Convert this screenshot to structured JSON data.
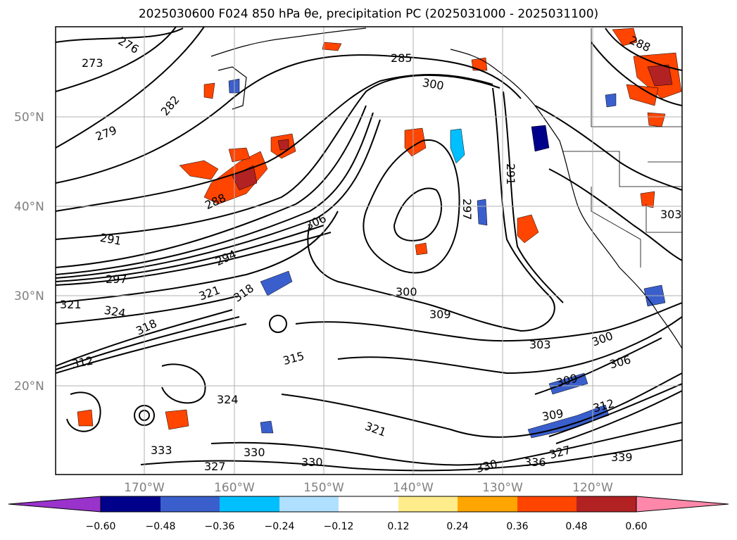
{
  "title": "2025030600 F024 850 hPa θe, precipitation PC (2025031000 - 2025031100)",
  "map": {
    "lat_labels": [
      "50°N",
      "40°N",
      "30°N",
      "20°N"
    ],
    "lon_labels": [
      "170°W",
      "160°W",
      "150°W",
      "140°W",
      "130°W",
      "120°W"
    ],
    "contour_labels": [
      "273",
      "276",
      "279",
      "282",
      "285",
      "288",
      "288",
      "291",
      "291",
      "294",
      "297",
      "297",
      "300",
      "300",
      "300",
      "303",
      "303",
      "306",
      "306",
      "309",
      "309",
      "309",
      "312",
      "312",
      "315",
      "318",
      "318",
      "321",
      "321",
      "321",
      "324",
      "324",
      "327",
      "327",
      "330",
      "330",
      "330",
      "333",
      "336",
      "339"
    ]
  },
  "colorbar": {
    "ticks": [
      "−0.60",
      "−0.48",
      "−0.36",
      "−0.24",
      "−0.12",
      "0.12",
      "0.24",
      "0.36",
      "0.48",
      "0.60"
    ],
    "colors": [
      "#9933cc",
      "#00008b",
      "#3a5fcd",
      "#00bfff",
      "#b0e0ff",
      "#ffffff",
      "#ffec8b",
      "#ffa500",
      "#ff4500",
      "#b22222",
      "#ff88aa"
    ]
  }
}
